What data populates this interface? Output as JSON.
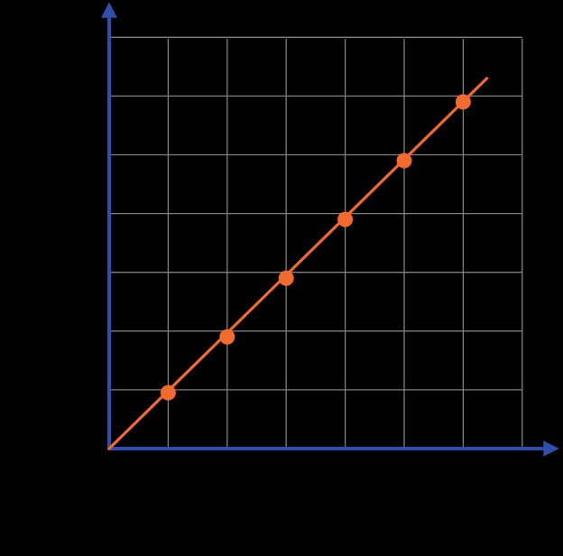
{
  "chart_data": {
    "type": "scatter",
    "title": "",
    "xlabel": "",
    "ylabel": "",
    "xlim": [
      0,
      7
    ],
    "ylim": [
      0,
      7
    ],
    "grid": true,
    "x": [
      1,
      2,
      3,
      4,
      5,
      6
    ],
    "series": [
      {
        "values": [
          0.95,
          1.9,
          2.9,
          3.9,
          4.9,
          5.9
        ]
      }
    ],
    "fit_line": {
      "x": [
        0,
        6.4
      ],
      "y": [
        0,
        6.3
      ]
    },
    "colors": {
      "background": "#000000",
      "grid": "#808080",
      "axis": "#2F4FA8",
      "series": "#F26A2E"
    }
  }
}
